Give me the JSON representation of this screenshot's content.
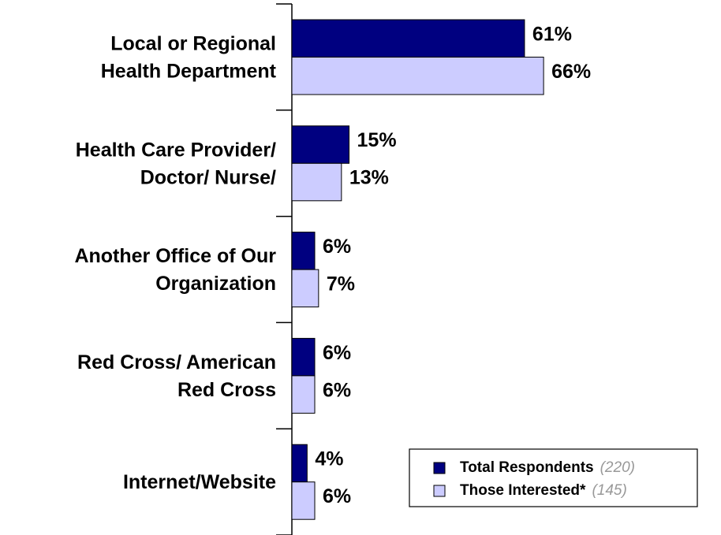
{
  "chart_data": {
    "type": "hbar",
    "categories": [
      [
        "Local or Regional",
        "Health Department"
      ],
      [
        "Health Care Provider/",
        "Doctor/ Nurse/"
      ],
      [
        "Another Office of Our",
        "Organization"
      ],
      [
        "Red Cross/ American",
        "Red Cross"
      ],
      [
        "Internet/Website"
      ]
    ],
    "series": [
      {
        "name": "Total Respondents",
        "note": "(220)",
        "color": "#000080",
        "values": [
          61,
          15,
          6,
          6,
          4
        ],
        "value_labels": [
          "61%",
          "15%",
          "6%",
          "6%",
          "4%"
        ]
      },
      {
        "name": "Those Interested*",
        "note": "(145)",
        "color": "#ccccff",
        "values": [
          66,
          13,
          7,
          6,
          6
        ],
        "value_labels": [
          "66%",
          "13%",
          "7%",
          "6%",
          "6%"
        ]
      }
    ],
    "legend": "lower right"
  }
}
